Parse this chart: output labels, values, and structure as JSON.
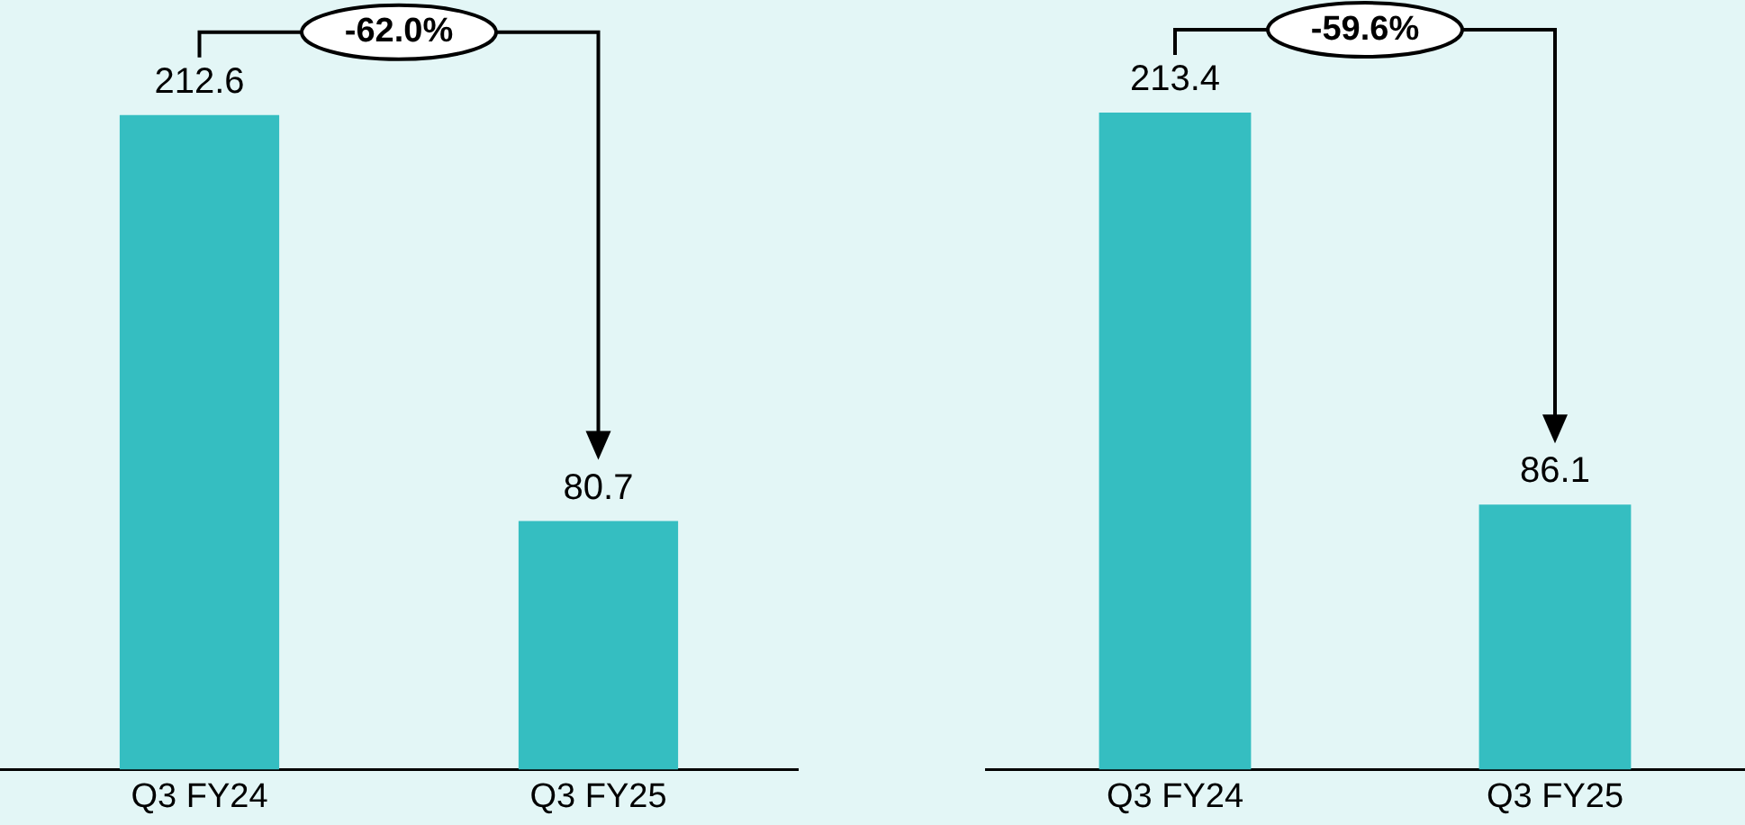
{
  "chart_data": [
    {
      "type": "bar",
      "categories": [
        "Q3 FY24",
        "Q3 FY25"
      ],
      "values": [
        212.6,
        80.7
      ],
      "color": "#35bec1",
      "data_labels": true,
      "tick_labels": "x",
      "annotations": [
        "-62.0%"
      ]
    },
    {
      "type": "bar",
      "categories": [
        "Q3 FY24",
        "Q3 FY25"
      ],
      "values": [
        213.4,
        86.1
      ],
      "color": "#35bec1",
      "data_labels": true,
      "tick_labels": "x",
      "annotations": [
        "-59.6%"
      ]
    }
  ]
}
